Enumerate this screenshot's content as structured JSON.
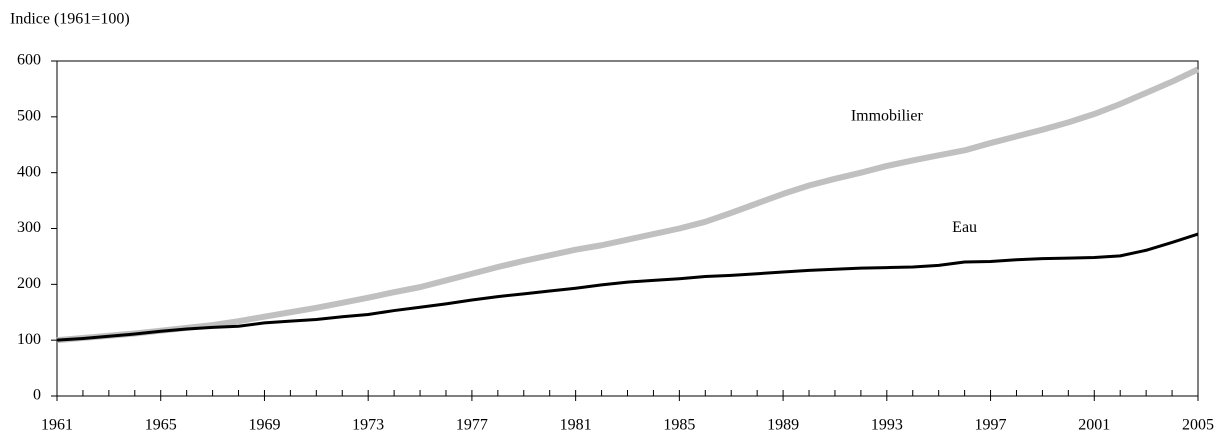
{
  "chart_data": {
    "type": "line",
    "y_label": "Indice (1961=100)",
    "x": [
      1961,
      1962,
      1963,
      1964,
      1965,
      1966,
      1967,
      1968,
      1969,
      1970,
      1971,
      1972,
      1973,
      1974,
      1975,
      1976,
      1977,
      1978,
      1979,
      1980,
      1981,
      1982,
      1983,
      1984,
      1985,
      1986,
      1987,
      1988,
      1989,
      1990,
      1991,
      1992,
      1993,
      1994,
      1995,
      1996,
      1997,
      1998,
      1999,
      2000,
      2001,
      2002,
      2003,
      2004,
      2005
    ],
    "series": [
      {
        "name": "Immobilier",
        "color": "#c0c0c0",
        "width": 6,
        "label_at": [
          1993,
          500
        ],
        "values": [
          100,
          104,
          108,
          112,
          117,
          122,
          127,
          134,
          142,
          150,
          158,
          167,
          176,
          186,
          195,
          207,
          219,
          231,
          242,
          252,
          262,
          270,
          280,
          290,
          300,
          312,
          328,
          345,
          362,
          377,
          389,
          400,
          412,
          422,
          431,
          440,
          453,
          465,
          477,
          490,
          505,
          523,
          543,
          563,
          585
        ]
      },
      {
        "name": "Eau",
        "color": "#000000",
        "width": 3,
        "label_at": [
          1996,
          300
        ],
        "values": [
          100,
          103,
          107,
          111,
          116,
          120,
          123,
          125,
          131,
          134,
          137,
          142,
          146,
          153,
          159,
          165,
          172,
          178,
          183,
          188,
          193,
          199,
          204,
          207,
          210,
          214,
          216,
          219,
          222,
          225,
          227,
          229,
          230,
          231,
          234,
          240,
          241,
          244,
          246,
          247,
          248,
          251,
          261,
          275,
          290
        ]
      }
    ],
    "xlim": [
      1961,
      2005
    ],
    "xticks": [
      1961,
      1965,
      1969,
      1973,
      1977,
      1981,
      1985,
      1989,
      1993,
      1997,
      2001,
      2005
    ],
    "ylim": [
      0,
      600
    ],
    "yticks": [
      0,
      100,
      200,
      300,
      400,
      500,
      600
    ],
    "grid": false
  }
}
